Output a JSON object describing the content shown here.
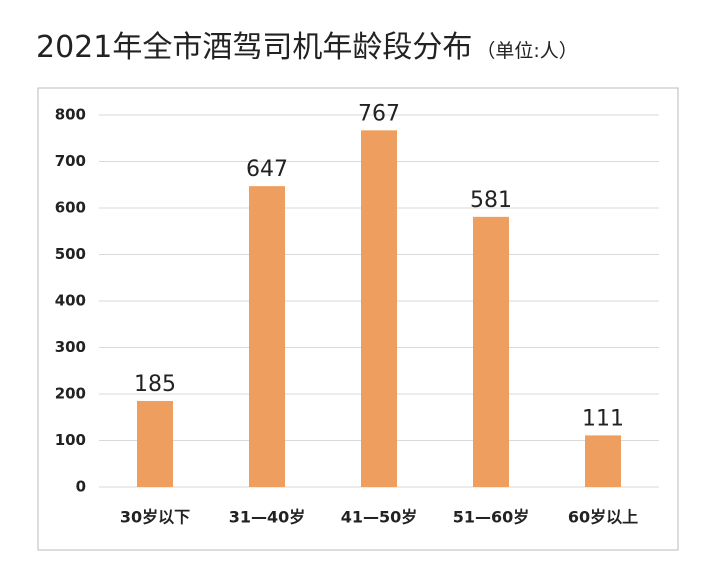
{
  "chart_data": {
    "type": "bar",
    "title": "2021年全市酒驾司机年龄段分布",
    "subtitle": "（单位:人）",
    "categories": [
      "30岁以下",
      "31—40岁",
      "41—50岁",
      "51—60岁",
      "60岁以上"
    ],
    "values": [
      185,
      647,
      767,
      581,
      111
    ],
    "color": "#ee9e5e",
    "ylim": [
      0,
      800
    ],
    "yticks": [
      0,
      100,
      200,
      300,
      400,
      500,
      600,
      700,
      800
    ],
    "grid": true
  }
}
